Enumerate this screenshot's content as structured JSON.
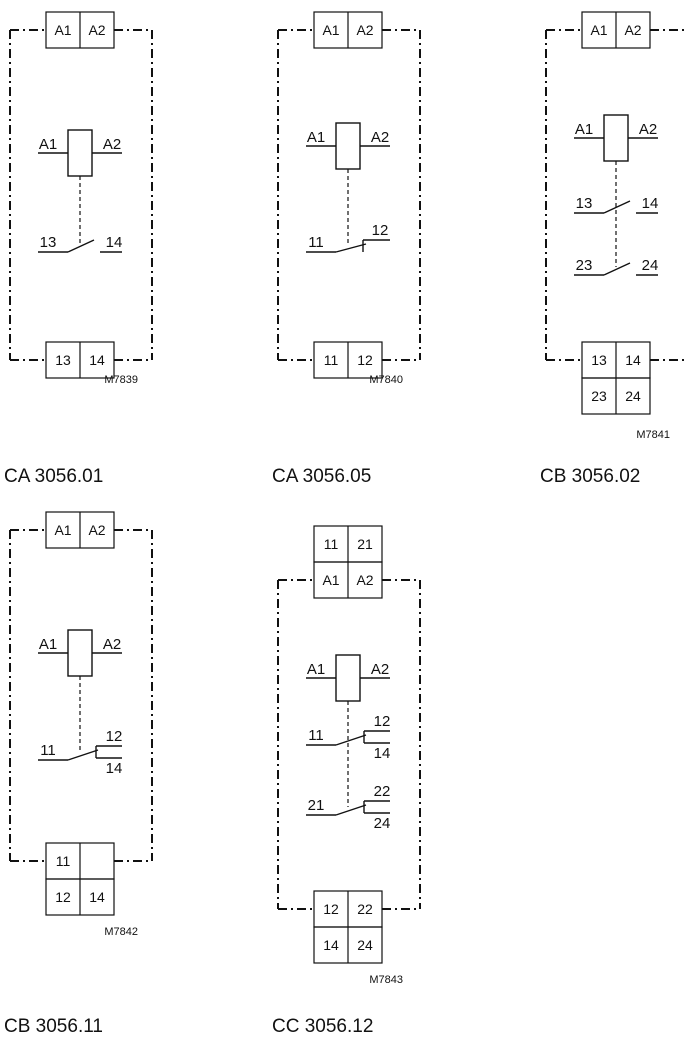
{
  "diagrams": [
    {
      "id": "ca-3056-01",
      "caption": "CA 3056.01",
      "code": "M7839",
      "top_terminals": [
        [
          "A1",
          "A2"
        ]
      ],
      "coil": {
        "left": "A1",
        "right": "A2"
      },
      "contacts": [
        {
          "type": "NO",
          "left": "13",
          "right": "14"
        }
      ],
      "bottom_terminals": [
        [
          "13",
          "14"
        ]
      ]
    },
    {
      "id": "ca-3056-05",
      "caption": "CA 3056.05",
      "code": "M7840",
      "top_terminals": [
        [
          "A1",
          "A2"
        ]
      ],
      "coil": {
        "left": "A1",
        "right": "A2"
      },
      "contacts": [
        {
          "type": "NC",
          "left": "11",
          "right": "12"
        }
      ],
      "bottom_terminals": [
        [
          "11",
          "12"
        ]
      ]
    },
    {
      "id": "cb-3056-02",
      "caption": "CB 3056.02",
      "code": "M7841",
      "top_terminals": [
        [
          "A1",
          "A2"
        ]
      ],
      "coil": {
        "left": "A1",
        "right": "A2"
      },
      "contacts": [
        {
          "type": "NO",
          "left": "13",
          "right": "14"
        },
        {
          "type": "NO",
          "left": "23",
          "right": "24"
        }
      ],
      "bottom_terminals": [
        [
          "13",
          "14"
        ],
        [
          "23",
          "24"
        ]
      ]
    },
    {
      "id": "cb-3056-11",
      "caption": "CB 3056.11",
      "code": "M7842",
      "top_terminals": [
        [
          "A1",
          "A2"
        ]
      ],
      "coil": {
        "left": "A1",
        "right": "A2"
      },
      "contacts": [
        {
          "type": "CO",
          "left": "11",
          "right_top": "12",
          "right_bottom": "14"
        }
      ],
      "bottom_terminals": [
        [
          "11",
          ""
        ],
        [
          "12",
          "14"
        ]
      ]
    },
    {
      "id": "cc-3056-12",
      "caption": "CC 3056.12",
      "code": "M7843",
      "above_terminals": [
        [
          "11",
          "21"
        ]
      ],
      "top_terminals": [
        [
          "A1",
          "A2"
        ]
      ],
      "coil": {
        "left": "A1",
        "right": "A2"
      },
      "contacts": [
        {
          "type": "CO",
          "left": "11",
          "right_top": "12",
          "right_bottom": "14"
        },
        {
          "type": "CO",
          "left": "21",
          "right_top": "22",
          "right_bottom": "24"
        }
      ],
      "bottom_terminals": [
        [
          "12",
          "22"
        ],
        [
          "14",
          "24"
        ]
      ]
    }
  ]
}
